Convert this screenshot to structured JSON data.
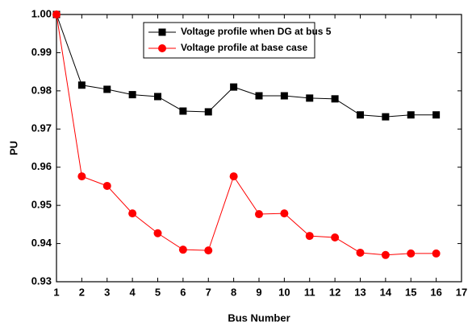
{
  "chart_data": {
    "type": "line",
    "x": [
      1,
      2,
      3,
      4,
      5,
      6,
      7,
      8,
      9,
      10,
      11,
      12,
      13,
      14,
      15,
      16
    ],
    "series": [
      {
        "name": "Voltage profile when DG at bus 5",
        "color": "#000000",
        "marker": "square",
        "values": [
          1.0,
          0.9815,
          0.9804,
          0.979,
          0.9785,
          0.9747,
          0.9745,
          0.981,
          0.9787,
          0.9787,
          0.9781,
          0.9779,
          0.9737,
          0.9732,
          0.9737,
          0.9737
        ]
      },
      {
        "name": "Voltage profile at base case",
        "color": "#ff0000",
        "marker": "circle",
        "values": [
          1.0,
          0.9576,
          0.9551,
          0.9479,
          0.9427,
          0.9384,
          0.9382,
          0.9576,
          0.9477,
          0.9479,
          0.942,
          0.9416,
          0.9376,
          0.937,
          0.9374,
          0.9374
        ]
      }
    ],
    "xlabel": "Bus Number",
    "ylabel": "PU",
    "xlim": [
      1,
      17
    ],
    "xticks": [
      1,
      2,
      3,
      4,
      5,
      6,
      7,
      8,
      9,
      10,
      11,
      12,
      13,
      14,
      15,
      16,
      17
    ],
    "ylim": [
      0.93,
      1.0
    ],
    "yticks": [
      0.93,
      0.94,
      0.95,
      0.96,
      0.97,
      0.98,
      0.99,
      {
        "value": 1.0,
        "label": "1.00"
      }
    ],
    "legend": "upper left",
    "grid": false
  }
}
